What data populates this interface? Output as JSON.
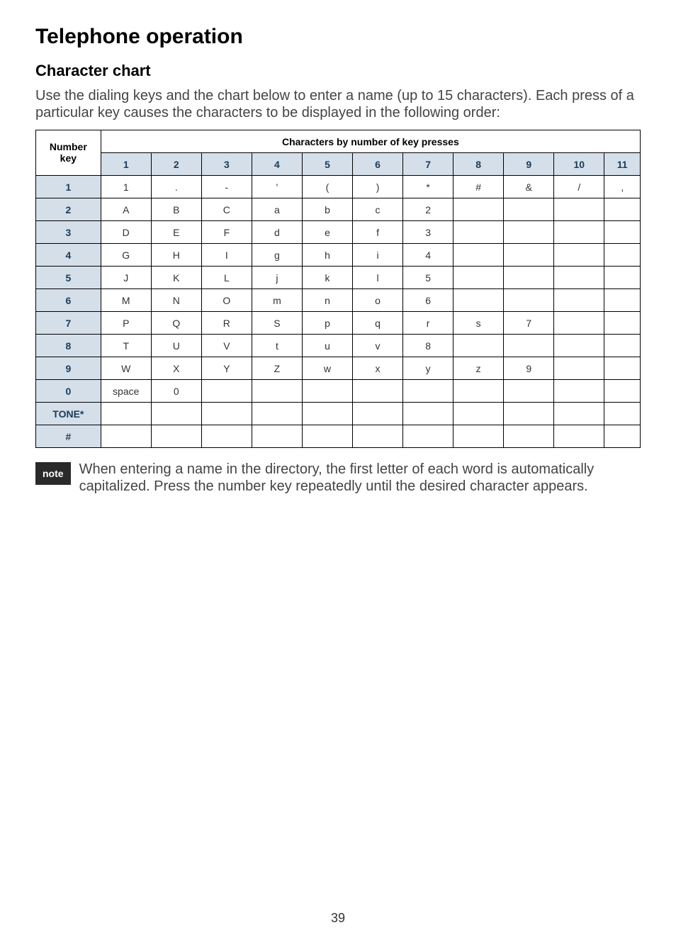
{
  "page_title": "Telephone operation",
  "section_title": "Character chart",
  "intro_text": "Use the dialing keys and the chart below to enter a name (up to 15 characters). Each press of a particular key causes the characters to be displayed in the following order:",
  "table": {
    "number_key_label_line1": "Number",
    "number_key_label_line2": "key",
    "top_header": "Characters by number of key presses",
    "col_headers": [
      "1",
      "2",
      "3",
      "4",
      "5",
      "6",
      "7",
      "8",
      "9",
      "10",
      "11"
    ],
    "rows": [
      {
        "key": "1",
        "cells": [
          "1",
          ".",
          "-",
          "'",
          "(",
          ")",
          "*",
          "#",
          "&",
          "/",
          ","
        ]
      },
      {
        "key": "2",
        "cells": [
          "A",
          "B",
          "C",
          "a",
          "b",
          "c",
          "2",
          "",
          "",
          "",
          ""
        ]
      },
      {
        "key": "3",
        "cells": [
          "D",
          "E",
          "F",
          "d",
          "e",
          "f",
          "3",
          "",
          "",
          "",
          ""
        ]
      },
      {
        "key": "4",
        "cells": [
          "G",
          "H",
          "I",
          "g",
          "h",
          "i",
          "4",
          "",
          "",
          "",
          ""
        ]
      },
      {
        "key": "5",
        "cells": [
          "J",
          "K",
          "L",
          "j",
          "k",
          "l",
          "5",
          "",
          "",
          "",
          ""
        ]
      },
      {
        "key": "6",
        "cells": [
          "M",
          "N",
          "O",
          "m",
          "n",
          "o",
          "6",
          "",
          "",
          "",
          ""
        ]
      },
      {
        "key": "7",
        "cells": [
          "P",
          "Q",
          "R",
          "S",
          "p",
          "q",
          "r",
          "s",
          "7",
          "",
          ""
        ]
      },
      {
        "key": "8",
        "cells": [
          "T",
          "U",
          "V",
          "t",
          "u",
          "v",
          "8",
          "",
          "",
          "",
          ""
        ]
      },
      {
        "key": "9",
        "cells": [
          "W",
          "X",
          "Y",
          "Z",
          "w",
          "x",
          "y",
          "z",
          "9",
          "",
          ""
        ]
      },
      {
        "key": "0",
        "cells": [
          "space",
          "0",
          "",
          "",
          "",
          "",
          "",
          "",
          "",
          "",
          ""
        ]
      },
      {
        "key": "TONE*",
        "cells": [
          "",
          "",
          "",
          "",
          "",
          "",
          "",
          "",
          "",
          "",
          ""
        ]
      },
      {
        "key": "#",
        "cells": [
          "",
          "",
          "",
          "",
          "",
          "",
          "",
          "",
          "",
          "",
          ""
        ]
      }
    ]
  },
  "note_badge": "note",
  "note_text": "When entering a name in the directory, the first letter of each word is automatically capitalized. Press the number key repeatedly until the desired character appears.",
  "page_number": "39"
}
